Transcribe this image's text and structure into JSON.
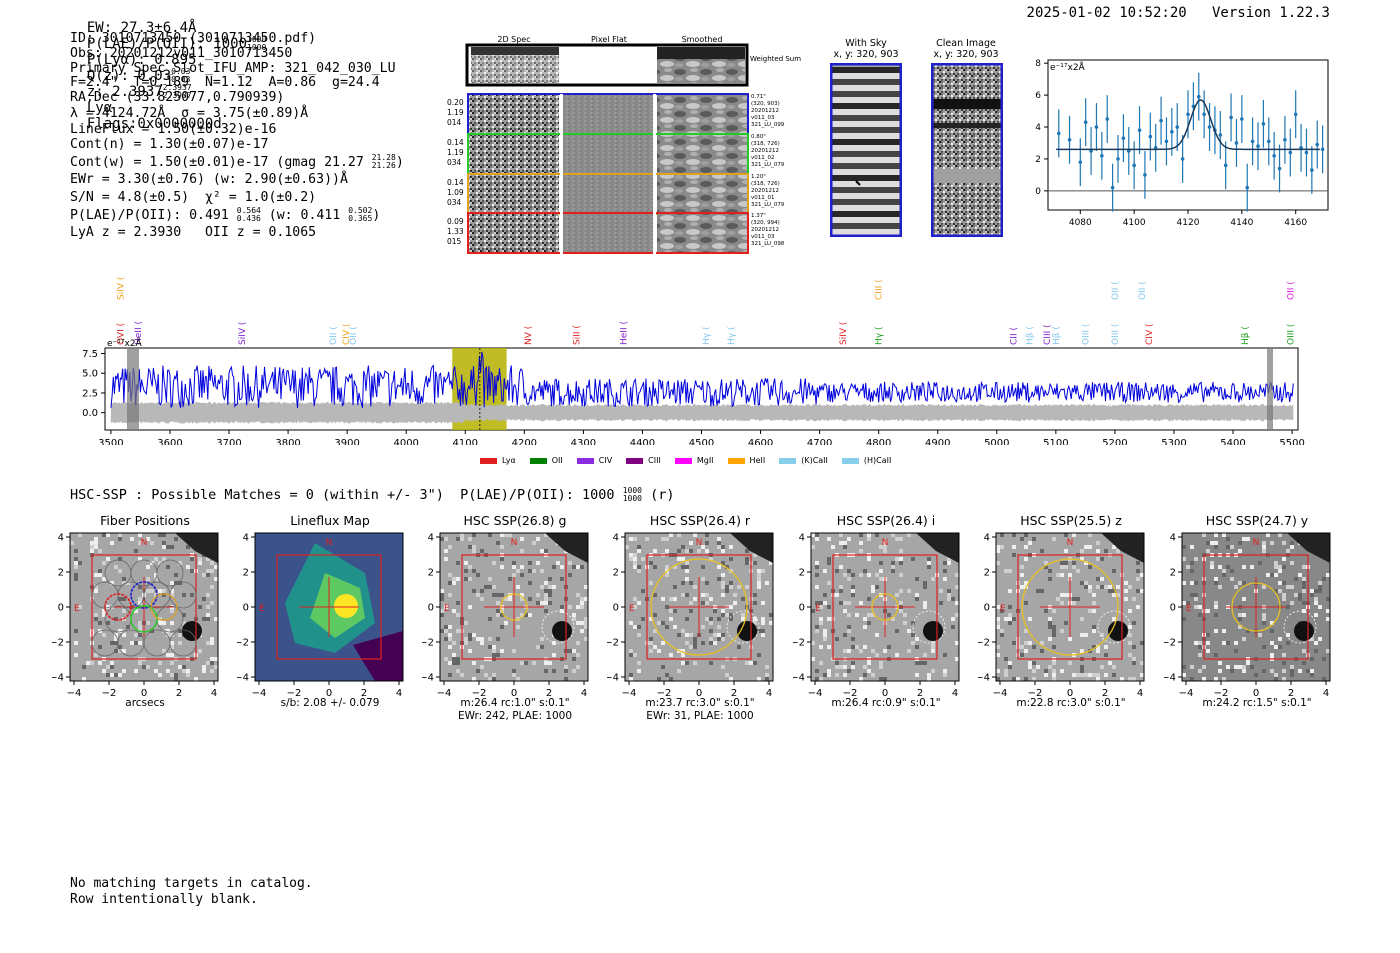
{
  "header": {
    "ew": "EW: 27.3±6.4Å",
    "plae_label": "P(LAE)/P(OII): 1000",
    "plae_hi": "1000",
    "plae_lo": "1000",
    "plya": "P(Lyα): 0.895",
    "qz_label": "Q(z): 0.03",
    "qz_hi": "0.03",
    "qz_lo": "0.03",
    "z_label": "z: 2.3937",
    "z_hi": "2.3937",
    "z_lo": "2.3937",
    "z_line": "Lyα",
    "flags": "Flags:0x0000000d",
    "datetime": "2025-01-02 10:52:20",
    "version": "Version 1.22.3"
  },
  "info": {
    "id": "ID: 3010713450 (3010713450.pdf)",
    "obs": "Obs: 20201212v011_3010713450",
    "primary": "Primary Spec_Slot_IFU_AMP: 321_042_030_LU",
    "params": "F=2.4\"  T=0.189  N=1.12  A=0.86  g=24.4",
    "radec": "RA,Dec (33.825077,0.790939)",
    "wave": "λ = 4124.72Å  σ = 3.75(±0.89)Å",
    "lineflux": "LineFlux = 1.50(±0.32)e-16",
    "contn": "Cont(n) = 1.30(±0.07)e-17",
    "contw": "Cont(w) = 1.50(±0.01)e-17 (gmag 21.27",
    "contw_hi": "21.28",
    "contw_lo": "21.26",
    "ewr": "EWr = 3.30(±0.76) (w: 2.90(±0.63))Å",
    "sn": "S/N = 4.8(±0.5)  χ² = 1.0(±0.2)",
    "plae": "P(LAE)/P(OII): 0.491",
    "plae_hi": "0.564",
    "plae_lo": "0.436",
    "plae_w": "(w: 0.411",
    "plae_w_hi": "0.502",
    "plae_w_lo": "0.365",
    "z": "LyA z = 2.3930   OII z = 0.1065"
  },
  "cutouts": {
    "col_titles": [
      "2D Spec",
      "Pixel Flat",
      "Smoothed"
    ],
    "weighted_sum": "Weighted Sum",
    "rows": [
      {
        "l1": "0.20",
        "l2": "1.19",
        "l3": "014",
        "r1": "0.71\"",
        "r2": "(320, 903)",
        "r3": "20201212",
        "r4": "v011_03",
        "r5": "321_LU_099",
        "color": "#1f1fcc"
      },
      {
        "l1": "0.14",
        "l2": "1.19",
        "l3": "034",
        "r1": "0.80\"",
        "r2": "(318, 726)",
        "r3": "20201212",
        "r4": "v011_02",
        "r5": "321_LU_079",
        "color": "#22cc22"
      },
      {
        "l1": "0.14",
        "l2": "1.09",
        "l3": "034",
        "r1": "1.20\"",
        "r2": "(318, 726)",
        "r3": "20201212",
        "r4": "v011_01",
        "r5": "321_LU_079",
        "color": "#e0a020"
      },
      {
        "l1": "0.09",
        "l2": "1.33",
        "l3": "015",
        "r1": "1.37\"",
        "r2": "(320, 994)",
        "r3": "20201212",
        "r4": "v011_03",
        "r5": "321_LU_098",
        "color": "#e02020"
      }
    ],
    "with_sky_title": "With Sky",
    "with_sky_xy": "x, y: 320, 903",
    "clean_title": "Clean Image",
    "clean_xy": "x, y: 320, 903"
  },
  "fit_plot": {
    "ylabel": "e⁻¹⁷x2Å",
    "xticks": [
      "4080",
      "4100",
      "4120",
      "4140",
      "4160"
    ],
    "yticks": [
      "0",
      "2",
      "4",
      "6",
      "8"
    ]
  },
  "spectrum": {
    "ylabel": "e⁻¹⁷x2Å",
    "xticks": [
      "3500",
      "3600",
      "3700",
      "3800",
      "3900",
      "4000",
      "4100",
      "4200",
      "4300",
      "4400",
      "4500",
      "4600",
      "4700",
      "4800",
      "4900",
      "5000",
      "5100",
      "5200",
      "5300",
      "5400",
      "5500"
    ],
    "yticks": [
      "7.5",
      "5.0",
      "2.5",
      "0.0"
    ],
    "lines": [
      {
        "name": "SiIV",
        "x": 3516,
        "row": "top",
        "color": "#f0a020"
      },
      {
        "name": "OVI",
        "x": 3516,
        "row": "bot",
        "color": "#e02020"
      },
      {
        "name": "HeII",
        "x": 3546,
        "row": "bot",
        "color": "#8020d0"
      },
      {
        "name": "SiIV",
        "x": 3722,
        "row": "bot",
        "color": "#8020d0"
      },
      {
        "name": "OII",
        "x": 3876,
        "row": "bot",
        "color": "#80c8f0"
      },
      {
        "name": "CIV",
        "x": 3898,
        "row": "bot",
        "color": "#f0a020"
      },
      {
        "name": "OII",
        "x": 3910,
        "row": "bot",
        "color": "#80c8f0"
      },
      {
        "name": "NV",
        "x": 4206,
        "row": "bot",
        "color": "#e02020"
      },
      {
        "name": "SiII",
        "x": 4288,
        "row": "bot",
        "color": "#e02020"
      },
      {
        "name": "HeII",
        "x": 4368,
        "row": "bot",
        "color": "#8020d0"
      },
      {
        "name": "Hγ",
        "x": 4508,
        "row": "bot",
        "color": "#80c8f0"
      },
      {
        "name": "Hγ",
        "x": 4550,
        "row": "bot",
        "color": "#80c8f0"
      },
      {
        "name": "SiIV",
        "x": 4740,
        "row": "bot",
        "color": "#e02020"
      },
      {
        "name": "CIII",
        "x": 4800,
        "row": "top",
        "color": "#f0a020"
      },
      {
        "name": "Hγ",
        "x": 4800,
        "row": "bot",
        "color": "#20a020"
      },
      {
        "name": "CII",
        "x": 5028,
        "row": "bot",
        "color": "#8020d0"
      },
      {
        "name": "Hβ",
        "x": 5055,
        "row": "bot",
        "color": "#80c8f0"
      },
      {
        "name": "CIII",
        "x": 5085,
        "row": "bot",
        "color": "#8020d0"
      },
      {
        "name": "Hβ",
        "x": 5100,
        "row": "bot",
        "color": "#80c8f0"
      },
      {
        "name": "OIII",
        "x": 5150,
        "row": "bot",
        "color": "#80c8f0"
      },
      {
        "name": "OII",
        "x": 5200,
        "row": "top",
        "color": "#80c8f0"
      },
      {
        "name": "OIII",
        "x": 5200,
        "row": "bot",
        "color": "#80c8f0"
      },
      {
        "name": "OII",
        "x": 5246,
        "row": "top",
        "color": "#80c8f0"
      },
      {
        "name": "CIV",
        "x": 5258,
        "row": "bot",
        "color": "#e02020"
      },
      {
        "name": "Hβ",
        "x": 5420,
        "row": "bot",
        "color": "#20a020"
      },
      {
        "name": "OII",
        "x": 5497,
        "row": "top",
        "color": "#e020e0"
      },
      {
        "name": "OIII",
        "x": 5497,
        "row": "bot",
        "color": "#20a020"
      }
    ],
    "legend": [
      {
        "name": "Lyα",
        "color": "#e02020"
      },
      {
        "name": "OII",
        "color": "#008000"
      },
      {
        "name": "CIV",
        "color": "#8a2be2"
      },
      {
        "name": "CIII",
        "color": "#800080"
      },
      {
        "name": "MgII",
        "color": "#ff00ff"
      },
      {
        "name": "HeII",
        "color": "#ffa500"
      },
      {
        "name": "(K)CaII",
        "color": "#87ceeb"
      },
      {
        "name": "(H)CaII",
        "color": "#87ceeb"
      }
    ]
  },
  "hsc": {
    "line": "HSC-SSP : Possible Matches = 0 (within +/- 3\")  P(LAE)/P(OII): 1000",
    "hi": "1000",
    "lo": "1000",
    "band": "(r)",
    "panels": [
      {
        "title": "Fiber Positions",
        "foot1": "arcsecs",
        "foot2": ""
      },
      {
        "title": "Lineflux Map",
        "foot1": "s/b: 2.08 +/- 0.079",
        "foot2": ""
      },
      {
        "title": "HSC SSP(26.8) g",
        "foot1": "m:26.4 rc:1.0\"  s:0.1\"",
        "foot2": "EWr: 242, PLAE: 1000"
      },
      {
        "title": "HSC SSP(26.4) r",
        "foot1": "m:23.7 rc:3.0\"  s:0.1\"",
        "foot2": "EWr: 31, PLAE: 1000"
      },
      {
        "title": "HSC SSP(26.4) i",
        "foot1": "m:26.4 rc:0.9\"  s:0.1\"",
        "foot2": ""
      },
      {
        "title": "HSC SSP(25.5) z",
        "foot1": "m:22.8 rc:3.0\"  s:0.1\"",
        "foot2": ""
      },
      {
        "title": "HSC SSP(24.7) y",
        "foot1": "m:24.2 rc:1.5\"  s:0.1\"",
        "foot2": ""
      }
    ],
    "ticks": [
      "−4",
      "−2",
      "0",
      "2",
      "4"
    ],
    "n_label": "N",
    "e_label": "E"
  },
  "footer": {
    "line1": "No matching targets in catalog.",
    "line2": "Row intentionally blank."
  },
  "chart_data": [
    {
      "type": "scatter",
      "title": "",
      "xlabel": "",
      "ylabel": "e-17 x2Å",
      "xlim": [
        4068,
        4172
      ],
      "ylim": [
        -1.2,
        8.2
      ],
      "x": [
        4072,
        4076,
        4080,
        4082,
        4084,
        4086,
        4088,
        4090,
        4092,
        4094,
        4096,
        4098,
        4100,
        4102,
        4104,
        4106,
        4108,
        4110,
        4112,
        4114,
        4116,
        4118,
        4120,
        4122,
        4124,
        4126,
        4128,
        4130,
        4132,
        4134,
        4136,
        4138,
        4140,
        4142,
        4144,
        4146,
        4148,
        4150,
        4152,
        4154,
        4156,
        4158,
        4160,
        4162,
        4164,
        4166,
        4168,
        4170
      ],
      "y": [
        3.6,
        3.2,
        1.8,
        4.3,
        2.5,
        4.0,
        2.2,
        4.5,
        0.2,
        2.0,
        3.3,
        2.5,
        1.6,
        3.8,
        1.0,
        3.4,
        2.7,
        4.4,
        3.1,
        3.7,
        4.0,
        2.0,
        4.8,
        5.3,
        5.9,
        4.8,
        4.0,
        3.8,
        3.5,
        1.6,
        4.6,
        3.0,
        4.5,
        0.2,
        3.1,
        2.8,
        4.2,
        3.1,
        2.2,
        1.4,
        3.2,
        2.4,
        4.8,
        2.7,
        2.4,
        1.3,
        2.9,
        2.6
      ],
      "fit": {
        "continuum": 2.6,
        "peak_x": 4124.7,
        "sigma": 3.75,
        "amplitude": 3.1
      }
    },
    {
      "type": "line",
      "title": "",
      "xlabel": "",
      "ylabel": "e-17 x2Å",
      "xlim": [
        3490,
        5510
      ],
      "ylim": [
        -2.2,
        8.2
      ],
      "series": [
        {
          "name": "flux",
          "mean": 2.6,
          "noise": 2.0
        }
      ],
      "highlight": [
        4078,
        4170
      ],
      "marker_x": 4124.7
    }
  ]
}
